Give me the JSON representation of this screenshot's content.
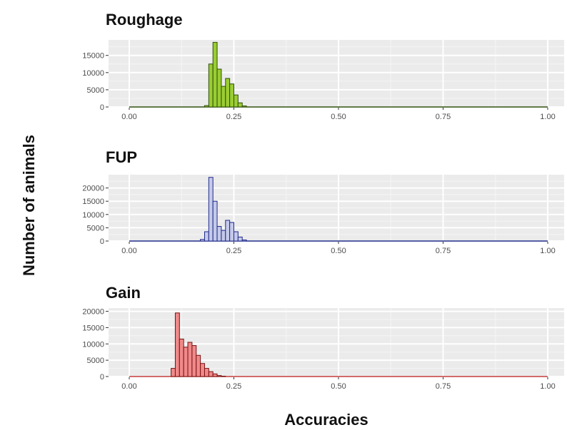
{
  "figure": {
    "ylabel": "Number of animals",
    "xlabel": "Accuracies"
  },
  "chart_data": [
    {
      "type": "bar",
      "title": "Roughage",
      "fill": "#9acd32",
      "stroke": "#2f4f0a",
      "baseline_color": "#2f4f0a",
      "bin_width": 0.01,
      "xlim": [
        0,
        1
      ],
      "ylim": [
        0,
        19500
      ],
      "xticks": [
        "0.00",
        "0.25",
        "0.50",
        "0.75",
        "1.00"
      ],
      "yticks": [
        "0",
        "5000",
        "10000",
        "15000"
      ],
      "bins": [
        {
          "x": 0.18,
          "count": 400
        },
        {
          "x": 0.19,
          "count": 12500
        },
        {
          "x": 0.2,
          "count": 18800
        },
        {
          "x": 0.21,
          "count": 11000
        },
        {
          "x": 0.22,
          "count": 6000
        },
        {
          "x": 0.23,
          "count": 8300
        },
        {
          "x": 0.24,
          "count": 6700
        },
        {
          "x": 0.25,
          "count": 3500
        },
        {
          "x": 0.26,
          "count": 1200
        },
        {
          "x": 0.27,
          "count": 300
        }
      ]
    },
    {
      "type": "bar",
      "title": "FUP",
      "fill": "#c5cae9",
      "stroke": "#1f2b8a",
      "baseline_color": "#1f2b8a",
      "bin_width": 0.01,
      "xlim": [
        0,
        1
      ],
      "ylim": [
        0,
        25000
      ],
      "xticks": [
        "0.00",
        "0.25",
        "0.50",
        "0.75",
        "1.00"
      ],
      "yticks": [
        "0",
        "5000",
        "10000",
        "15000",
        "20000"
      ],
      "bins": [
        {
          "x": 0.17,
          "count": 600
        },
        {
          "x": 0.18,
          "count": 3500
        },
        {
          "x": 0.19,
          "count": 24000
        },
        {
          "x": 0.2,
          "count": 15000
        },
        {
          "x": 0.21,
          "count": 5500
        },
        {
          "x": 0.22,
          "count": 4000
        },
        {
          "x": 0.23,
          "count": 7800
        },
        {
          "x": 0.24,
          "count": 7000
        },
        {
          "x": 0.25,
          "count": 3500
        },
        {
          "x": 0.26,
          "count": 1500
        },
        {
          "x": 0.27,
          "count": 400
        }
      ]
    },
    {
      "type": "bar",
      "title": "Gain",
      "fill": "#f08a8a",
      "stroke": "#7a1212",
      "baseline_color": "#c43a3a",
      "bin_width": 0.01,
      "xlim": [
        0,
        1
      ],
      "ylim": [
        0,
        21000
      ],
      "xticks": [
        "0.00",
        "0.25",
        "0.50",
        "0.75",
        "1.00"
      ],
      "yticks": [
        "0",
        "5000",
        "10000",
        "15000",
        "20000"
      ],
      "bins": [
        {
          "x": 0.1,
          "count": 2500
        },
        {
          "x": 0.11,
          "count": 19500
        },
        {
          "x": 0.12,
          "count": 11500
        },
        {
          "x": 0.13,
          "count": 9000
        },
        {
          "x": 0.14,
          "count": 10500
        },
        {
          "x": 0.15,
          "count": 9500
        },
        {
          "x": 0.16,
          "count": 6500
        },
        {
          "x": 0.17,
          "count": 4000
        },
        {
          "x": 0.18,
          "count": 2500
        },
        {
          "x": 0.19,
          "count": 1500
        },
        {
          "x": 0.2,
          "count": 800
        },
        {
          "x": 0.21,
          "count": 300
        },
        {
          "x": 0.22,
          "count": 100
        }
      ]
    }
  ]
}
